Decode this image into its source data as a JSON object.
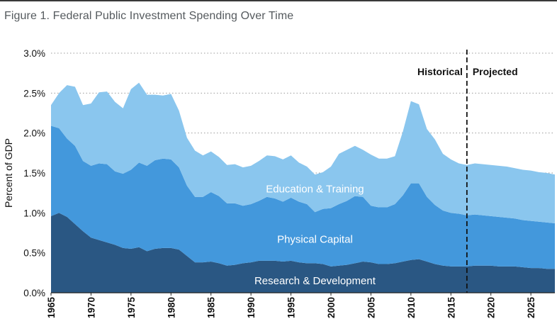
{
  "title": "Figure 1. Federal Public Investment Spending Over Time",
  "chart_data": {
    "type": "area",
    "stacked": true,
    "ylabel": "Percent of GDP",
    "xlabel": "",
    "xlim": [
      1965,
      2028
    ],
    "ylim": [
      0,
      3.0
    ],
    "yticks": [
      "0.0%",
      "0.5%",
      "1.0%",
      "1.5%",
      "2.0%",
      "2.5%",
      "3.0%"
    ],
    "yticks_values": [
      0,
      0.5,
      1.0,
      1.5,
      2.0,
      2.5,
      3.0
    ],
    "xticks": [
      "1965",
      "1970",
      "1975",
      "1980",
      "1985",
      "1990",
      "1995",
      "2000",
      "2005",
      "2010",
      "2015",
      "2020",
      "2025"
    ],
    "grid": "horizontal-dotted",
    "x": [
      1965,
      1966,
      1967,
      1968,
      1969,
      1970,
      1971,
      1972,
      1973,
      1974,
      1975,
      1976,
      1977,
      1978,
      1979,
      1980,
      1981,
      1982,
      1983,
      1984,
      1985,
      1986,
      1987,
      1988,
      1989,
      1990,
      1991,
      1992,
      1993,
      1994,
      1995,
      1996,
      1997,
      1998,
      1999,
      2000,
      2001,
      2002,
      2003,
      2004,
      2005,
      2006,
      2007,
      2008,
      2009,
      2010,
      2011,
      2012,
      2013,
      2014,
      2015,
      2016,
      2017,
      2018,
      2019,
      2020,
      2021,
      2022,
      2023,
      2024,
      2025,
      2026,
      2027,
      2028
    ],
    "series": [
      {
        "name": "Research & Development",
        "color": "#2a5783",
        "values": [
          0.96,
          1.0,
          0.95,
          0.86,
          0.77,
          0.69,
          0.66,
          0.63,
          0.6,
          0.56,
          0.55,
          0.57,
          0.52,
          0.55,
          0.56,
          0.56,
          0.54,
          0.46,
          0.38,
          0.38,
          0.39,
          0.37,
          0.34,
          0.35,
          0.37,
          0.38,
          0.4,
          0.4,
          0.4,
          0.39,
          0.4,
          0.38,
          0.37,
          0.37,
          0.36,
          0.33,
          0.34,
          0.35,
          0.37,
          0.39,
          0.38,
          0.36,
          0.36,
          0.37,
          0.39,
          0.41,
          0.42,
          0.39,
          0.36,
          0.34,
          0.33,
          0.33,
          0.33,
          0.34,
          0.34,
          0.34,
          0.33,
          0.33,
          0.33,
          0.32,
          0.31,
          0.31,
          0.3,
          0.3
        ]
      },
      {
        "name": "Physical Capital",
        "color": "#4398dc",
        "values": [
          1.13,
          1.06,
          0.98,
          0.98,
          0.88,
          0.9,
          0.96,
          0.98,
          0.92,
          0.93,
          0.99,
          1.06,
          1.07,
          1.11,
          1.12,
          1.11,
          1.03,
          0.88,
          0.82,
          0.82,
          0.87,
          0.84,
          0.78,
          0.77,
          0.72,
          0.73,
          0.75,
          0.8,
          0.78,
          0.75,
          0.79,
          0.76,
          0.74,
          0.64,
          0.69,
          0.73,
          0.77,
          0.8,
          0.84,
          0.81,
          0.71,
          0.71,
          0.71,
          0.74,
          0.83,
          0.96,
          0.95,
          0.81,
          0.74,
          0.69,
          0.67,
          0.66,
          0.64,
          0.64,
          0.63,
          0.62,
          0.62,
          0.61,
          0.6,
          0.59,
          0.59,
          0.58,
          0.58,
          0.57
        ]
      },
      {
        "name": "Education & Training",
        "color": "#8ac6ee",
        "values": [
          0.26,
          0.44,
          0.67,
          0.74,
          0.7,
          0.78,
          0.89,
          0.91,
          0.87,
          0.82,
          1.01,
          1.0,
          0.89,
          0.82,
          0.79,
          0.82,
          0.71,
          0.6,
          0.58,
          0.52,
          0.51,
          0.49,
          0.48,
          0.49,
          0.48,
          0.48,
          0.5,
          0.52,
          0.53,
          0.53,
          0.53,
          0.49,
          0.47,
          0.47,
          0.46,
          0.52,
          0.63,
          0.64,
          0.63,
          0.59,
          0.64,
          0.61,
          0.61,
          0.6,
          0.8,
          1.03,
          0.99,
          0.85,
          0.82,
          0.71,
          0.67,
          0.63,
          0.63,
          0.64,
          0.64,
          0.64,
          0.64,
          0.64,
          0.63,
          0.63,
          0.63,
          0.62,
          0.62,
          0.61
        ]
      }
    ],
    "annotations": {
      "divider_year": 2017,
      "left_label": "Historical",
      "right_label": "Projected"
    }
  }
}
